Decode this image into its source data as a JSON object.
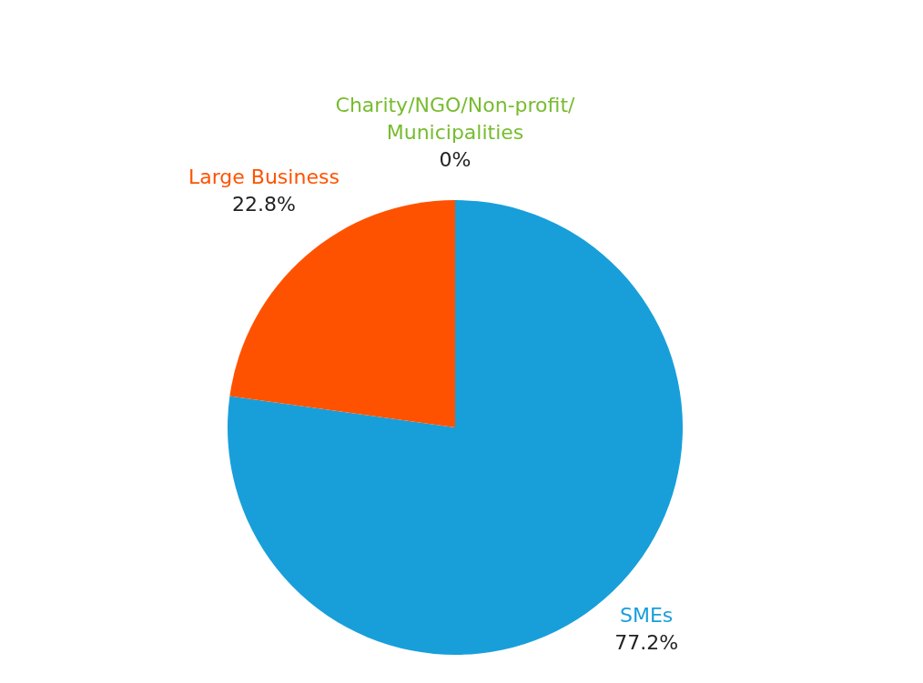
{
  "chart_data": {
    "type": "pie",
    "categories": [
      "SMEs",
      "Large Business",
      "Charity/NGO/Non-profit/Municipalities"
    ],
    "values": [
      77.2,
      22.8,
      0
    ],
    "colors": [
      "#189fda",
      "#ff5200",
      "#77bc2f"
    ],
    "value_labels": [
      "77.2%",
      "22.8%",
      "0%"
    ]
  }
}
